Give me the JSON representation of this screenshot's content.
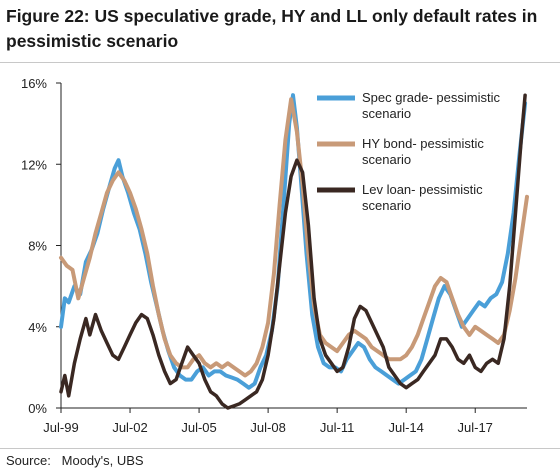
{
  "title": "Figure 22: US speculative grade, HY and LL only default rates in pessimistic scenario",
  "source": "Source:   Moody's, UBS",
  "chart_data": {
    "type": "line",
    "title": "Figure 22: US speculative grade, HY and LL only default rates in pessimistic scenario",
    "xlabel": "",
    "ylabel": "",
    "x_range": [
      "1999-07",
      "2019-10"
    ],
    "ylim": [
      0,
      16
    ],
    "y_ticks": [
      0,
      4,
      8,
      12,
      16
    ],
    "y_tick_labels": [
      "0%",
      "4%",
      "8%",
      "12%",
      "16%"
    ],
    "x_ticks": [
      "1999-07",
      "2002-07",
      "2005-07",
      "2008-07",
      "2011-07",
      "2014-07",
      "2017-07"
    ],
    "x_tick_labels": [
      "Jul-99",
      "Jul-02",
      "Jul-05",
      "Jul-08",
      "Jul-11",
      "Jul-14",
      "Jul-17"
    ],
    "grid": false,
    "legend_position": "top-right",
    "series": [
      {
        "name": "Spec grade- pessimistic scenario",
        "legend_lines": [
          "Spec grade- pessimistic",
          "scenario"
        ],
        "color": "#4a9fd8",
        "points": [
          [
            "1999-07",
            4.0
          ],
          [
            "1999-09",
            5.4
          ],
          [
            "1999-11",
            5.2
          ],
          [
            "2000-02",
            6.0
          ],
          [
            "2000-05",
            5.6
          ],
          [
            "2000-08",
            7.2
          ],
          [
            "2000-11",
            7.8
          ],
          [
            "2001-02",
            8.6
          ],
          [
            "2001-05",
            9.8
          ],
          [
            "2001-08",
            10.8
          ],
          [
            "2001-11",
            11.8
          ],
          [
            "2002-01",
            12.2
          ],
          [
            "2002-03",
            11.4
          ],
          [
            "2002-06",
            10.6
          ],
          [
            "2002-09",
            9.6
          ],
          [
            "2002-12",
            8.8
          ],
          [
            "2003-03",
            7.6
          ],
          [
            "2003-06",
            6.2
          ],
          [
            "2003-09",
            5.0
          ],
          [
            "2003-12",
            3.8
          ],
          [
            "2004-03",
            2.8
          ],
          [
            "2004-06",
            2.0
          ],
          [
            "2004-09",
            1.6
          ],
          [
            "2004-12",
            1.4
          ],
          [
            "2005-03",
            1.4
          ],
          [
            "2005-06",
            1.8
          ],
          [
            "2005-09",
            2.0
          ],
          [
            "2005-12",
            1.6
          ],
          [
            "2006-03",
            1.8
          ],
          [
            "2006-06",
            1.8
          ],
          [
            "2006-09",
            1.6
          ],
          [
            "2006-12",
            1.5
          ],
          [
            "2007-03",
            1.4
          ],
          [
            "2007-06",
            1.2
          ],
          [
            "2007-09",
            1.0
          ],
          [
            "2007-12",
            1.2
          ],
          [
            "2008-03",
            2.0
          ],
          [
            "2008-06",
            2.6
          ],
          [
            "2008-09",
            3.8
          ],
          [
            "2008-12",
            6.0
          ],
          [
            "2009-03",
            10.0
          ],
          [
            "2009-06",
            14.0
          ],
          [
            "2009-08",
            15.4
          ],
          [
            "2009-10",
            13.8
          ],
          [
            "2009-12",
            11.4
          ],
          [
            "2010-03",
            7.6
          ],
          [
            "2010-06",
            4.6
          ],
          [
            "2010-09",
            3.0
          ],
          [
            "2010-12",
            2.2
          ],
          [
            "2011-03",
            2.0
          ],
          [
            "2011-06",
            2.0
          ],
          [
            "2011-09",
            1.8
          ],
          [
            "2011-12",
            2.4
          ],
          [
            "2012-03",
            2.8
          ],
          [
            "2012-06",
            3.2
          ],
          [
            "2012-09",
            3.0
          ],
          [
            "2012-12",
            2.4
          ],
          [
            "2013-03",
            2.0
          ],
          [
            "2013-06",
            1.8
          ],
          [
            "2013-09",
            1.6
          ],
          [
            "2013-12",
            1.4
          ],
          [
            "2014-03",
            1.2
          ],
          [
            "2014-06",
            1.4
          ],
          [
            "2014-09",
            1.6
          ],
          [
            "2014-12",
            1.8
          ],
          [
            "2015-03",
            2.4
          ],
          [
            "2015-06",
            3.4
          ],
          [
            "2015-09",
            4.4
          ],
          [
            "2015-12",
            5.4
          ],
          [
            "2016-03",
            6.0
          ],
          [
            "2016-06",
            5.6
          ],
          [
            "2016-09",
            4.8
          ],
          [
            "2016-12",
            4.0
          ],
          [
            "2017-03",
            4.4
          ],
          [
            "2017-06",
            4.8
          ],
          [
            "2017-09",
            5.2
          ],
          [
            "2017-12",
            5.0
          ],
          [
            "2018-03",
            5.4
          ],
          [
            "2018-06",
            5.6
          ],
          [
            "2018-09",
            6.2
          ],
          [
            "2018-12",
            7.6
          ],
          [
            "2019-03",
            9.6
          ],
          [
            "2019-06",
            12.4
          ],
          [
            "2019-09",
            15.0
          ]
        ]
      },
      {
        "name": "HY bond- pessimistic scenario",
        "legend_lines": [
          "HY bond- pessimistic",
          "scenario"
        ],
        "color": "#c89a78",
        "points": [
          [
            "1999-07",
            7.4
          ],
          [
            "1999-10",
            7.0
          ],
          [
            "2000-01",
            6.8
          ],
          [
            "2000-04",
            5.4
          ],
          [
            "2000-07",
            6.4
          ],
          [
            "2000-10",
            7.4
          ],
          [
            "2001-01",
            8.6
          ],
          [
            "2001-04",
            9.6
          ],
          [
            "2001-07",
            10.6
          ],
          [
            "2001-10",
            11.2
          ],
          [
            "2002-01",
            11.6
          ],
          [
            "2002-04",
            11.2
          ],
          [
            "2002-07",
            10.6
          ],
          [
            "2002-10",
            9.8
          ],
          [
            "2003-01",
            8.8
          ],
          [
            "2003-04",
            7.6
          ],
          [
            "2003-07",
            6.0
          ],
          [
            "2003-10",
            4.6
          ],
          [
            "2004-01",
            3.4
          ],
          [
            "2004-04",
            2.6
          ],
          [
            "2004-07",
            2.2
          ],
          [
            "2004-10",
            2.0
          ],
          [
            "2005-01",
            2.0
          ],
          [
            "2005-04",
            2.4
          ],
          [
            "2005-07",
            2.6
          ],
          [
            "2005-10",
            2.2
          ],
          [
            "2006-01",
            2.0
          ],
          [
            "2006-04",
            2.2
          ],
          [
            "2006-07",
            2.0
          ],
          [
            "2006-10",
            2.2
          ],
          [
            "2007-01",
            2.0
          ],
          [
            "2007-04",
            1.8
          ],
          [
            "2007-07",
            1.6
          ],
          [
            "2007-10",
            1.8
          ],
          [
            "2008-01",
            2.2
          ],
          [
            "2008-04",
            3.0
          ],
          [
            "2008-07",
            4.2
          ],
          [
            "2008-10",
            6.6
          ],
          [
            "2009-01",
            10.0
          ],
          [
            "2009-04",
            13.2
          ],
          [
            "2009-07",
            15.2
          ],
          [
            "2009-10",
            13.6
          ],
          [
            "2010-01",
            11.0
          ],
          [
            "2010-04",
            7.6
          ],
          [
            "2010-07",
            5.0
          ],
          [
            "2010-10",
            3.6
          ],
          [
            "2011-01",
            3.2
          ],
          [
            "2011-04",
            3.0
          ],
          [
            "2011-07",
            2.8
          ],
          [
            "2011-10",
            3.2
          ],
          [
            "2012-01",
            3.6
          ],
          [
            "2012-04",
            3.8
          ],
          [
            "2012-07",
            3.6
          ],
          [
            "2012-10",
            3.4
          ],
          [
            "2013-01",
            3.0
          ],
          [
            "2013-04",
            2.8
          ],
          [
            "2013-07",
            2.6
          ],
          [
            "2013-10",
            2.4
          ],
          [
            "2014-01",
            2.4
          ],
          [
            "2014-04",
            2.4
          ],
          [
            "2014-07",
            2.6
          ],
          [
            "2014-10",
            3.0
          ],
          [
            "2015-01",
            3.6
          ],
          [
            "2015-04",
            4.4
          ],
          [
            "2015-07",
            5.2
          ],
          [
            "2015-10",
            6.0
          ],
          [
            "2016-01",
            6.4
          ],
          [
            "2016-04",
            6.2
          ],
          [
            "2016-07",
            5.4
          ],
          [
            "2016-10",
            4.6
          ],
          [
            "2017-01",
            4.0
          ],
          [
            "2017-04",
            3.6
          ],
          [
            "2017-07",
            4.0
          ],
          [
            "2017-10",
            3.8
          ],
          [
            "2018-01",
            3.6
          ],
          [
            "2018-04",
            3.4
          ],
          [
            "2018-07",
            3.2
          ],
          [
            "2018-10",
            3.6
          ],
          [
            "2019-01",
            4.8
          ],
          [
            "2019-04",
            6.4
          ],
          [
            "2019-07",
            8.4
          ],
          [
            "2019-10",
            10.4
          ]
        ]
      },
      {
        "name": "Lev loan- pessimistic scenario",
        "legend_lines": [
          "Lev loan- pessimistic",
          "scenario"
        ],
        "color": "#3a2822",
        "points": [
          [
            "1999-07",
            0.8
          ],
          [
            "1999-09",
            1.6
          ],
          [
            "1999-11",
            0.6
          ],
          [
            "2000-02",
            2.2
          ],
          [
            "2000-05",
            3.4
          ],
          [
            "2000-08",
            4.4
          ],
          [
            "2000-10",
            3.6
          ],
          [
            "2001-01",
            4.6
          ],
          [
            "2001-04",
            3.8
          ],
          [
            "2001-07",
            3.2
          ],
          [
            "2001-10",
            2.6
          ],
          [
            "2002-01",
            2.4
          ],
          [
            "2002-04",
            3.0
          ],
          [
            "2002-07",
            3.6
          ],
          [
            "2002-10",
            4.2
          ],
          [
            "2003-01",
            4.6
          ],
          [
            "2003-04",
            4.4
          ],
          [
            "2003-07",
            3.6
          ],
          [
            "2003-10",
            2.6
          ],
          [
            "2004-01",
            1.8
          ],
          [
            "2004-04",
            1.2
          ],
          [
            "2004-07",
            1.4
          ],
          [
            "2004-10",
            2.2
          ],
          [
            "2005-01",
            3.0
          ],
          [
            "2005-04",
            2.6
          ],
          [
            "2005-07",
            2.2
          ],
          [
            "2005-10",
            1.4
          ],
          [
            "2006-01",
            0.8
          ],
          [
            "2006-04",
            0.6
          ],
          [
            "2006-07",
            0.2
          ],
          [
            "2006-10",
            0.0
          ],
          [
            "2007-01",
            0.1
          ],
          [
            "2007-04",
            0.2
          ],
          [
            "2007-07",
            0.4
          ],
          [
            "2007-10",
            0.6
          ],
          [
            "2008-01",
            0.8
          ],
          [
            "2008-04",
            1.4
          ],
          [
            "2008-07",
            2.6
          ],
          [
            "2008-10",
            4.4
          ],
          [
            "2009-01",
            7.0
          ],
          [
            "2009-04",
            9.6
          ],
          [
            "2009-07",
            11.4
          ],
          [
            "2009-10",
            12.2
          ],
          [
            "2010-01",
            11.6
          ],
          [
            "2010-04",
            9.0
          ],
          [
            "2010-07",
            5.4
          ],
          [
            "2010-10",
            3.4
          ],
          [
            "2011-01",
            2.6
          ],
          [
            "2011-04",
            2.2
          ],
          [
            "2011-07",
            1.8
          ],
          [
            "2011-10",
            2.0
          ],
          [
            "2012-01",
            3.0
          ],
          [
            "2012-04",
            4.4
          ],
          [
            "2012-07",
            5.0
          ],
          [
            "2012-10",
            4.8
          ],
          [
            "2013-01",
            4.2
          ],
          [
            "2013-04",
            3.6
          ],
          [
            "2013-07",
            3.0
          ],
          [
            "2013-10",
            2.0
          ],
          [
            "2014-01",
            1.6
          ],
          [
            "2014-04",
            1.2
          ],
          [
            "2014-07",
            1.0
          ],
          [
            "2014-10",
            1.2
          ],
          [
            "2015-01",
            1.4
          ],
          [
            "2015-04",
            1.8
          ],
          [
            "2015-07",
            2.2
          ],
          [
            "2015-10",
            2.6
          ],
          [
            "2016-01",
            3.4
          ],
          [
            "2016-04",
            3.4
          ],
          [
            "2016-07",
            3.0
          ],
          [
            "2016-10",
            2.4
          ],
          [
            "2017-01",
            2.2
          ],
          [
            "2017-04",
            2.6
          ],
          [
            "2017-07",
            2.0
          ],
          [
            "2017-10",
            1.8
          ],
          [
            "2018-01",
            2.2
          ],
          [
            "2018-04",
            2.4
          ],
          [
            "2018-07",
            2.2
          ],
          [
            "2018-10",
            3.4
          ],
          [
            "2019-01",
            6.0
          ],
          [
            "2019-04",
            9.6
          ],
          [
            "2019-07",
            13.2
          ],
          [
            "2019-09",
            15.4
          ]
        ]
      }
    ]
  }
}
